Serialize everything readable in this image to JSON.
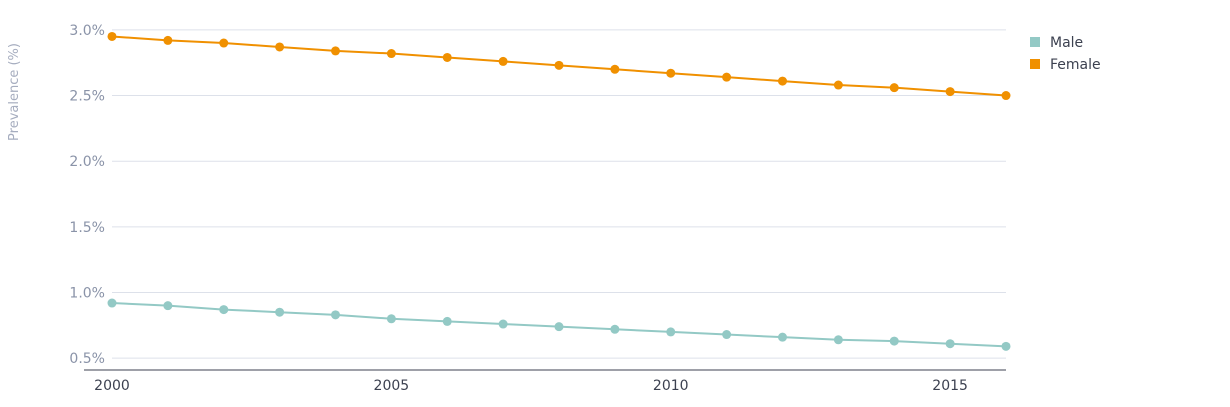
{
  "chart_data": {
    "type": "line",
    "title": "",
    "xlabel": "",
    "ylabel": "Prevalence (%)",
    "x": [
      2000,
      2001,
      2002,
      2003,
      2004,
      2005,
      2006,
      2007,
      2008,
      2009,
      2010,
      2011,
      2012,
      2013,
      2014,
      2015,
      2016
    ],
    "x_ticks": [
      "2000",
      "2005",
      "2010",
      "2015"
    ],
    "y_ticks": [
      "0.5%",
      "1.0%",
      "1.5%",
      "2.0%",
      "2.5%",
      "3.0%"
    ],
    "ylim": [
      0.41,
      3.06
    ],
    "grid": true,
    "legend_position": "top-right",
    "series": [
      {
        "name": "Male",
        "color": "#93c9c5",
        "values": [
          0.92,
          0.9,
          0.87,
          0.85,
          0.83,
          0.8,
          0.78,
          0.76,
          0.74,
          0.72,
          0.7,
          0.68,
          0.66,
          0.64,
          0.63,
          0.61,
          0.59
        ]
      },
      {
        "name": "Female",
        "color": "#f09000",
        "values": [
          2.95,
          2.92,
          2.9,
          2.87,
          2.84,
          2.82,
          2.79,
          2.76,
          2.73,
          2.7,
          2.67,
          2.64,
          2.61,
          2.58,
          2.56,
          2.53,
          2.5
        ]
      }
    ]
  }
}
